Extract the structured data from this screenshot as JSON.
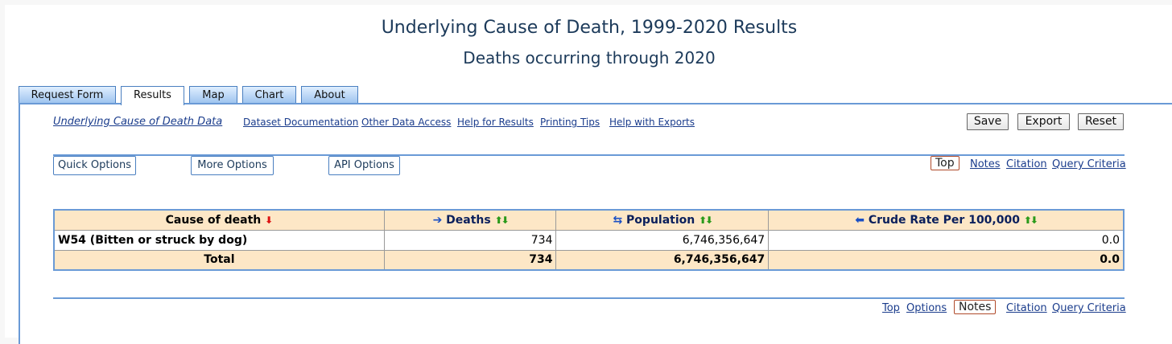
{
  "header": {
    "title": "Underlying Cause of Death, 1999-2020 Results",
    "subtitle": "Deaths occurring through 2020"
  },
  "tabs": [
    {
      "label": "Request Form"
    },
    {
      "label": "Results"
    },
    {
      "label": "Map"
    },
    {
      "label": "Chart"
    },
    {
      "label": "About"
    }
  ],
  "toolbar": {
    "links": [
      "Underlying Cause of Death Data",
      "Dataset Documentation",
      "Other Data Access",
      "Help for Results",
      "Printing Tips",
      "Help with Exports"
    ],
    "save_label": "Save",
    "export_label": "Export",
    "reset_label": "Reset"
  },
  "options": {
    "quick": "Quick Options",
    "more": "More Options",
    "api": "API Options"
  },
  "anchors_top": [
    "Top",
    "Notes",
    "Citation",
    "Query Criteria"
  ],
  "anchors_bottom": [
    "Top",
    "Options",
    "Notes",
    "Citation",
    "Query Criteria"
  ],
  "table": {
    "headers": [
      "Cause of death",
      "Deaths",
      "Population",
      "Crude Rate Per 100,000"
    ],
    "rows": [
      {
        "cause": "W54 (Bitten or struck by dog)",
        "deaths": "734",
        "population": "6,746,356,647",
        "crude_rate": "0.0"
      }
    ],
    "total": {
      "label": "Total",
      "deaths": "734",
      "population": "6,746,356,647",
      "crude_rate": "0.0"
    }
  },
  "icons": {
    "sort_desc": "red-down-arrow-icon",
    "move_right": "blue-right-arrow-icon",
    "swap": "blue-swap-arrow-icon",
    "move_left": "blue-left-arrow-icon",
    "sort": "green-up-down-arrows-icon"
  },
  "colors": {
    "accent": "#6a9ad6",
    "header_bg": "#fde7c6",
    "link": "#1a3c8c"
  }
}
